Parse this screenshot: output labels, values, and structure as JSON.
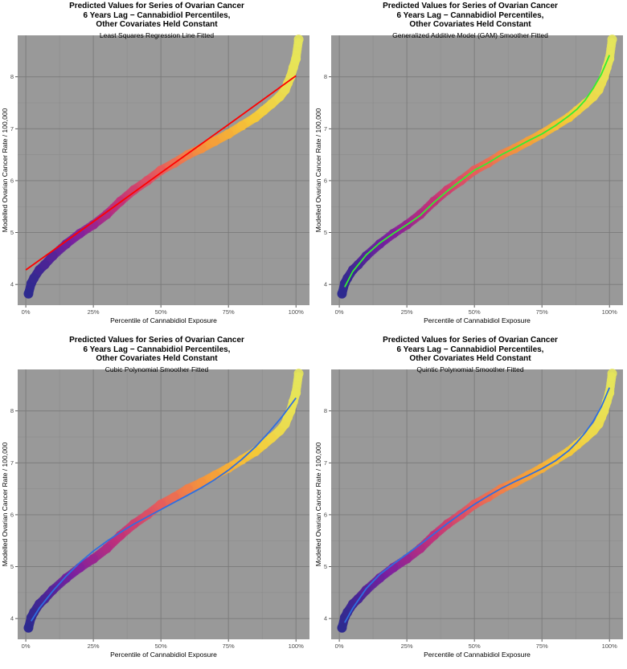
{
  "figure": {
    "panels": [
      {
        "title_lines": [
          "Predicted Values for Series of Ovarian Cancer",
          "6 Years Lag − Cannabidiol Percentiles,",
          "Other Covariates Held Constant"
        ],
        "subtitle": "Least Squares Regression Line Fitted",
        "fit_color": "#ff0000"
      },
      {
        "title_lines": [
          "Predicted Values for Series of Ovarian Cancer",
          "6 Years Lag − Cannabidiol Percentiles,",
          "Other Covariates Held Constant"
        ],
        "subtitle": "Generalized Additive Model (GAM) Smoother Fitted",
        "fit_color": "#33ee33"
      },
      {
        "title_lines": [
          "Predicted Values for Series of Ovarian Cancer",
          "6 Years Lag − Cannabidiol Percentiles,",
          "Other Covariates Held Constant"
        ],
        "subtitle": "Cubic Polynomial Smoother Fitted",
        "fit_color": "#2f6fe0"
      },
      {
        "title_lines": [
          "Predicted Values for Series of Ovarian Cancer",
          "6 Years Lag − Cannabidiol Percentiles,",
          "Other Covariates Held Constant"
        ],
        "subtitle": "Quintic Polynomial Smoother Fitted",
        "fit_color": "#2f6fe0"
      }
    ],
    "colors": {
      "panel_background": "#999999",
      "grid_major": "#7a7a7a",
      "grid_minor": "#8a8a8a",
      "point_gradient": [
        "#2e2a8f",
        "#7a1fa0",
        "#c0307a",
        "#e8605a",
        "#f59a3a",
        "#f5c838",
        "#e6e65a"
      ]
    }
  },
  "chart_data": [
    {
      "type": "scatter",
      "title": "Predicted Values for Series of Ovarian Cancer 6 Years Lag − Cannabidiol Percentiles, Other Covariates Held Constant",
      "subtitle": "Least Squares Regression Line Fitted",
      "xlabel": "Percentile of Cannabidiol Exposure",
      "ylabel": "Modelled Ovarian Cancer Rate / 100,000",
      "xlim": [
        -3,
        105
      ],
      "ylim": [
        3.6,
        8.8
      ],
      "xticks": [
        0,
        25,
        50,
        75,
        100
      ],
      "xtick_labels": [
        "0%",
        "25%",
        "50%",
        "75%",
        "100%"
      ],
      "yticks": [
        4,
        5,
        6,
        7,
        8
      ],
      "ytick_labels": [
        "4",
        "5",
        "6",
        "7",
        "8"
      ],
      "grid": true,
      "points": {
        "x": [
          1,
          2,
          3,
          5,
          7,
          10,
          15,
          20,
          25,
          30,
          35,
          40,
          45,
          50,
          55,
          60,
          65,
          70,
          75,
          80,
          85,
          88,
          91,
          94,
          96,
          97,
          98,
          99,
          100,
          101
        ],
        "y": [
          3.82,
          4.02,
          4.12,
          4.28,
          4.38,
          4.55,
          4.78,
          4.98,
          5.15,
          5.35,
          5.6,
          5.82,
          6.0,
          6.2,
          6.34,
          6.5,
          6.62,
          6.76,
          6.9,
          7.06,
          7.22,
          7.35,
          7.48,
          7.62,
          7.75,
          7.88,
          8.0,
          8.18,
          8.35,
          8.72
        ]
      },
      "fit": {
        "method": "Least Squares Regression Line",
        "x": [
          0,
          25,
          50,
          75,
          100
        ],
        "y": [
          4.28,
          5.21,
          6.15,
          7.08,
          8.02
        ]
      }
    },
    {
      "type": "scatter",
      "title": "Predicted Values for Series of Ovarian Cancer 6 Years Lag − Cannabidiol Percentiles, Other Covariates Held Constant",
      "subtitle": "Generalized Additive Model (GAM) Smoother Fitted",
      "xlabel": "Percentile of Cannabidiol Exposure",
      "ylabel": "Modelled Ovarian Cancer Rate / 100,000",
      "xlim": [
        -3,
        105
      ],
      "ylim": [
        3.6,
        8.8
      ],
      "xticks": [
        0,
        25,
        50,
        75,
        100
      ],
      "xtick_labels": [
        "0%",
        "25%",
        "50%",
        "75%",
        "100%"
      ],
      "yticks": [
        4,
        5,
        6,
        7,
        8
      ],
      "ytick_labels": [
        "4",
        "5",
        "6",
        "7",
        "8"
      ],
      "grid": true,
      "points": {
        "x": [
          1,
          2,
          3,
          5,
          7,
          10,
          15,
          20,
          25,
          30,
          35,
          40,
          45,
          50,
          55,
          60,
          65,
          70,
          75,
          80,
          85,
          88,
          91,
          94,
          96,
          97,
          98,
          99,
          100,
          101
        ],
        "y": [
          3.82,
          4.02,
          4.12,
          4.28,
          4.38,
          4.55,
          4.78,
          4.98,
          5.15,
          5.35,
          5.6,
          5.82,
          6.0,
          6.2,
          6.34,
          6.5,
          6.62,
          6.76,
          6.9,
          7.06,
          7.22,
          7.35,
          7.48,
          7.62,
          7.75,
          7.88,
          8.0,
          8.18,
          8.35,
          8.72
        ]
      },
      "fit": {
        "method": "GAM",
        "x": [
          2,
          5,
          10,
          15,
          20,
          25,
          30,
          35,
          40,
          45,
          50,
          55,
          60,
          65,
          70,
          75,
          80,
          85,
          88,
          91,
          94,
          97,
          100
        ],
        "y": [
          3.95,
          4.25,
          4.57,
          4.8,
          4.98,
          5.15,
          5.33,
          5.58,
          5.8,
          6.0,
          6.2,
          6.34,
          6.5,
          6.63,
          6.77,
          6.9,
          7.06,
          7.25,
          7.38,
          7.55,
          7.78,
          8.05,
          8.42
        ]
      }
    },
    {
      "type": "scatter",
      "title": "Predicted Values for Series of Ovarian Cancer 6 Years Lag − Cannabidiol Percentiles, Other Covariates Held Constant",
      "subtitle": "Cubic Polynomial Smoother Fitted",
      "xlabel": "Percentile of Cannabidiol Exposure",
      "ylabel": "Modelled Ovarian Cancer Rate / 100,000",
      "xlim": [
        -3,
        105
      ],
      "ylim": [
        3.6,
        8.8
      ],
      "xticks": [
        0,
        25,
        50,
        75,
        100
      ],
      "xtick_labels": [
        "0%",
        "25%",
        "50%",
        "75%",
        "100%"
      ],
      "yticks": [
        4,
        5,
        6,
        7,
        8
      ],
      "ytick_labels": [
        "4",
        "5",
        "6",
        "7",
        "8"
      ],
      "grid": true,
      "points": {
        "x": [
          1,
          2,
          3,
          5,
          7,
          10,
          15,
          20,
          25,
          30,
          35,
          40,
          45,
          50,
          55,
          60,
          65,
          70,
          75,
          80,
          85,
          88,
          91,
          94,
          96,
          97,
          98,
          99,
          100,
          101
        ],
        "y": [
          3.82,
          4.02,
          4.12,
          4.28,
          4.38,
          4.55,
          4.78,
          4.98,
          5.15,
          5.35,
          5.6,
          5.82,
          6.0,
          6.2,
          6.34,
          6.5,
          6.62,
          6.76,
          6.9,
          7.06,
          7.22,
          7.35,
          7.48,
          7.62,
          7.75,
          7.88,
          8.0,
          8.18,
          8.35,
          8.72
        ]
      },
      "fit": {
        "method": "Cubic Polynomial",
        "x": [
          2,
          5,
          10,
          15,
          20,
          25,
          30,
          35,
          40,
          45,
          50,
          55,
          60,
          65,
          70,
          75,
          80,
          85,
          90,
          95,
          100
        ],
        "y": [
          3.95,
          4.2,
          4.53,
          4.82,
          5.08,
          5.3,
          5.49,
          5.66,
          5.82,
          5.96,
          6.1,
          6.24,
          6.38,
          6.52,
          6.68,
          6.86,
          7.07,
          7.31,
          7.59,
          7.9,
          8.25
        ]
      }
    },
    {
      "type": "scatter",
      "title": "Predicted Values for Series of Ovarian Cancer 6 Years Lag − Cannabidiol Percentiles, Other Covariates Held Constant",
      "subtitle": "Quintic Polynomial Smoother Fitted",
      "xlabel": "Percentile of Cannabidiol Exposure",
      "ylabel": "Modelled Ovarian Cancer Rate / 100,000",
      "xlim": [
        -3,
        105
      ],
      "ylim": [
        3.6,
        8.8
      ],
      "xticks": [
        0,
        25,
        50,
        75,
        100
      ],
      "xtick_labels": [
        "0%",
        "25%",
        "50%",
        "75%",
        "100%"
      ],
      "yticks": [
        4,
        5,
        6,
        7,
        8
      ],
      "ytick_labels": [
        "4",
        "5",
        "6",
        "7",
        "8"
      ],
      "grid": true,
      "points": {
        "x": [
          1,
          2,
          3,
          5,
          7,
          10,
          15,
          20,
          25,
          30,
          35,
          40,
          45,
          50,
          55,
          60,
          65,
          70,
          75,
          80,
          85,
          88,
          91,
          94,
          96,
          97,
          98,
          99,
          100,
          101
        ],
        "y": [
          3.82,
          4.02,
          4.12,
          4.28,
          4.38,
          4.55,
          4.78,
          4.98,
          5.15,
          5.35,
          5.6,
          5.82,
          6.0,
          6.2,
          6.34,
          6.5,
          6.62,
          6.76,
          6.9,
          7.06,
          7.22,
          7.35,
          7.48,
          7.62,
          7.75,
          7.88,
          8.0,
          8.18,
          8.35,
          8.72
        ]
      },
      "fit": {
        "method": "Quintic Polynomial",
        "x": [
          2,
          5,
          10,
          15,
          20,
          25,
          30,
          35,
          40,
          45,
          50,
          55,
          60,
          65,
          70,
          75,
          80,
          85,
          88,
          91,
          94,
          97,
          100
        ],
        "y": [
          3.92,
          4.2,
          4.58,
          4.85,
          5.05,
          5.24,
          5.43,
          5.63,
          5.83,
          6.02,
          6.2,
          6.36,
          6.51,
          6.64,
          6.76,
          6.89,
          7.04,
          7.24,
          7.4,
          7.58,
          7.8,
          8.08,
          8.45
        ]
      }
    }
  ]
}
